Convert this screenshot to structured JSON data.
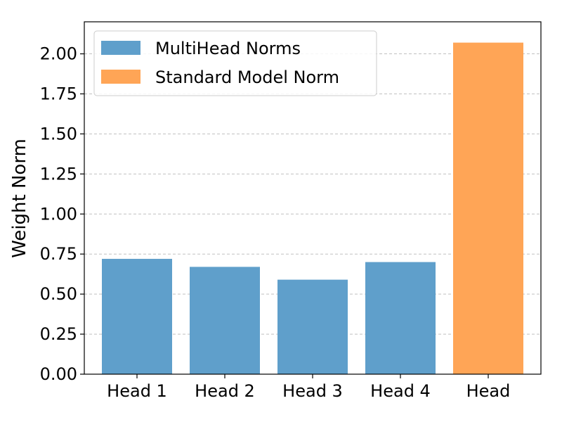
{
  "chart_data": {
    "type": "bar",
    "categories": [
      "Head 1",
      "Head 2",
      "Head 3",
      "Head 4",
      "Head"
    ],
    "series": [
      {
        "name": "MultiHead Norms",
        "values": [
          0.72,
          0.67,
          0.59,
          0.7,
          null
        ],
        "color": "#5f9fcb"
      },
      {
        "name": "Standard Model Norm",
        "values": [
          null,
          null,
          null,
          null,
          2.07
        ],
        "color": "#ffa556"
      }
    ],
    "ylabel": "Weight Norm",
    "xlabel": "",
    "ylim": [
      0,
      2.2
    ],
    "yticks": [
      0.0,
      0.25,
      0.5,
      0.75,
      1.0,
      1.25,
      1.5,
      1.75,
      2.0
    ],
    "ytick_labels": [
      "0.00",
      "0.25",
      "0.50",
      "0.75",
      "1.00",
      "1.25",
      "1.50",
      "1.75",
      "2.00"
    ],
    "grid": "y-dashed",
    "legend_position": "top-left"
  }
}
